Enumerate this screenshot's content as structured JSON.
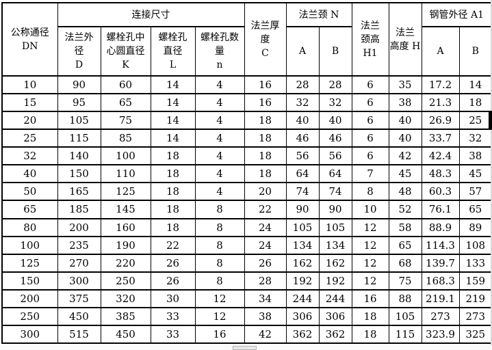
{
  "colors": {
    "table_border": "#000000",
    "background": "#ffffff",
    "edge_mark": "#000000",
    "bottom_artifact": "#e9e9e9"
  },
  "table": {
    "header": {
      "col_dn": "公称通径\nDN",
      "group_connection": "连接尺寸",
      "col_d": "法兰外\n径\nD",
      "col_k": "螺栓孔中\n心圆直径\nK",
      "col_l": "螺栓孔\n直径\nL",
      "col_n": "螺栓孔数\n量\nn",
      "col_c": "法兰厚\n度\nC",
      "group_neck": "法兰颈 N",
      "neck_a": "A",
      "neck_b": "B",
      "col_h1": "法兰\n颈高\nH1",
      "col_h": "法兰\n高度 H",
      "group_pipe": "钢管外径 A1",
      "pipe_a": "A",
      "pipe_b": "B"
    },
    "rows": [
      [
        "10",
        "90",
        "60",
        "14",
        "4",
        "16",
        "28",
        "28",
        "6",
        "35",
        "17.2",
        "14"
      ],
      [
        "15",
        "95",
        "65",
        "14",
        "4",
        "16",
        "32",
        "32",
        "6",
        "38",
        "21.3",
        "18"
      ],
      [
        "20",
        "105",
        "75",
        "14",
        "4",
        "18",
        "40",
        "40",
        "6",
        "40",
        "26.9",
        "25"
      ],
      [
        "25",
        "115",
        "85",
        "14",
        "4",
        "18",
        "46",
        "46",
        "6",
        "40",
        "33.7",
        "32"
      ],
      [
        "32",
        "140",
        "100",
        "18",
        "4",
        "18",
        "56",
        "56",
        "6",
        "42",
        "42.4",
        "38"
      ],
      [
        "40",
        "150",
        "110",
        "18",
        "4",
        "18",
        "64",
        "64",
        "7",
        "45",
        "48.3",
        "45"
      ],
      [
        "50",
        "165",
        "125",
        "18",
        "4",
        "20",
        "74",
        "74",
        "8",
        "48",
        "60.3",
        "57"
      ],
      [
        "65",
        "185",
        "145",
        "18",
        "8",
        "22",
        "90",
        "90",
        "10",
        "52",
        "76.1",
        "65"
      ],
      [
        "80",
        "200",
        "160",
        "18",
        "8",
        "24",
        "105",
        "105",
        "12",
        "58",
        "88.9",
        "89"
      ],
      [
        "100",
        "235",
        "190",
        "22",
        "8",
        "24",
        "134",
        "134",
        "12",
        "65",
        "114.3",
        "108"
      ],
      [
        "125",
        "270",
        "220",
        "26",
        "8",
        "26",
        "162",
        "162",
        "12",
        "68",
        "139.7",
        "133"
      ],
      [
        "150",
        "300",
        "250",
        "26",
        "8",
        "28",
        "192",
        "192",
        "12",
        "75",
        "168.3",
        "159"
      ],
      [
        "200",
        "375",
        "320",
        "30",
        "12",
        "34",
        "244",
        "244",
        "16",
        "88",
        "219.1",
        "219"
      ],
      [
        "250",
        "450",
        "385",
        "33",
        "12",
        "38",
        "306",
        "306",
        "18",
        "105",
        "273",
        "273"
      ],
      [
        "300",
        "515",
        "450",
        "33",
        "16",
        "42",
        "362",
        "362",
        "18",
        "115",
        "323.9",
        "325"
      ]
    ]
  }
}
